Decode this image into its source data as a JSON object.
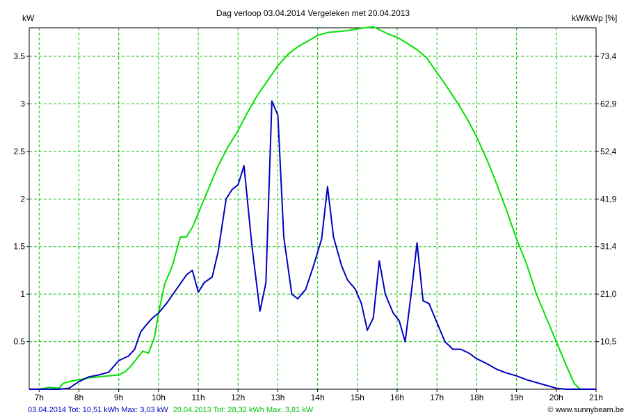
{
  "chart_data": {
    "type": "line",
    "title": "Dag  verloop 03.04.2014   Vergeleken met 20.04.2013",
    "ylabel_left": "kW",
    "ylabel_right": "kW/kWp [%]",
    "x_ticks": [
      "7h",
      "8h",
      "9h",
      "10h",
      "11h",
      "12h",
      "13h",
      "14h",
      "15h",
      "16h",
      "17h",
      "18h",
      "19h",
      "20h",
      "21h"
    ],
    "y_ticks_left": [
      "0.5",
      "1",
      "1.5",
      "2",
      "2.5",
      "3",
      "3.5"
    ],
    "y_ticks_right": [
      "10,5",
      "21,0",
      "31,4",
      "41,9",
      "52,4",
      "62,9",
      "73,4"
    ],
    "xlim": [
      6.75,
      21
    ],
    "ylim": [
      0,
      3.8
    ],
    "grid": true,
    "series": [
      {
        "color": "#00e000",
        "x": [
          6.75,
          7.0,
          7.25,
          7.5,
          7.6,
          7.75,
          8.0,
          8.25,
          8.5,
          8.75,
          9.0,
          9.15,
          9.3,
          9.45,
          9.6,
          9.75,
          9.9,
          10.0,
          10.15,
          10.35,
          10.55,
          10.7,
          10.85,
          11.0,
          11.25,
          11.5,
          11.75,
          12.0,
          12.25,
          12.5,
          12.75,
          13.0,
          13.25,
          13.5,
          13.75,
          14.0,
          14.25,
          14.5,
          14.75,
          15.0,
          15.2,
          15.4,
          15.6,
          15.8,
          16.0,
          16.2,
          16.5,
          16.75,
          17.0,
          17.25,
          17.5,
          17.75,
          18.0,
          18.25,
          18.5,
          18.75,
          19.0,
          19.25,
          19.5,
          19.75,
          20.0,
          20.25,
          20.45,
          20.6,
          20.8,
          21.0
        ],
        "y": [
          0.0,
          0.0,
          0.02,
          0.01,
          0.06,
          0.08,
          0.1,
          0.12,
          0.13,
          0.14,
          0.15,
          0.18,
          0.24,
          0.32,
          0.4,
          0.38,
          0.55,
          0.8,
          1.1,
          1.3,
          1.6,
          1.6,
          1.7,
          1.85,
          2.1,
          2.35,
          2.55,
          2.72,
          2.92,
          3.1,
          3.25,
          3.4,
          3.52,
          3.6,
          3.66,
          3.72,
          3.75,
          3.76,
          3.77,
          3.79,
          3.8,
          3.81,
          3.77,
          3.73,
          3.7,
          3.65,
          3.57,
          3.48,
          3.33,
          3.18,
          3.02,
          2.85,
          2.65,
          2.42,
          2.16,
          1.88,
          1.58,
          1.32,
          1.0,
          0.75,
          0.5,
          0.25,
          0.06,
          0.0,
          0.0,
          0.0
        ],
        "max_label": "20.04.2013 Tot: 28,32 kWh Max: 3,81 kW"
      },
      {
        "color": "#0000c0",
        "x": [
          6.75,
          7.5,
          7.75,
          8.0,
          8.25,
          8.5,
          8.75,
          9.0,
          9.25,
          9.4,
          9.55,
          9.7,
          9.85,
          10.0,
          10.2,
          10.45,
          10.7,
          10.85,
          11.0,
          11.15,
          11.35,
          11.5,
          11.7,
          11.85,
          12.0,
          12.15,
          12.35,
          12.55,
          12.7,
          12.85,
          13.0,
          13.15,
          13.35,
          13.5,
          13.7,
          13.9,
          14.1,
          14.25,
          14.4,
          14.6,
          14.75,
          14.95,
          15.1,
          15.25,
          15.4,
          15.55,
          15.7,
          15.9,
          16.05,
          16.2,
          16.35,
          16.5,
          16.65,
          16.8,
          17.0,
          17.2,
          17.4,
          17.6,
          17.8,
          18.0,
          18.25,
          18.5,
          18.75,
          19.0,
          19.25,
          19.5,
          19.75,
          20.0,
          20.25,
          21.0
        ],
        "y": [
          0.0,
          0.0,
          0.01,
          0.08,
          0.13,
          0.15,
          0.18,
          0.3,
          0.35,
          0.42,
          0.6,
          0.68,
          0.75,
          0.8,
          0.9,
          1.05,
          1.2,
          1.25,
          1.02,
          1.12,
          1.18,
          1.45,
          2.0,
          2.1,
          2.15,
          2.35,
          1.5,
          0.82,
          1.12,
          3.03,
          2.88,
          1.6,
          1.0,
          0.95,
          1.05,
          1.3,
          1.58,
          2.13,
          1.6,
          1.3,
          1.15,
          1.05,
          0.9,
          0.62,
          0.75,
          1.35,
          1.0,
          0.8,
          0.72,
          0.5,
          1.0,
          1.54,
          0.93,
          0.9,
          0.7,
          0.5,
          0.42,
          0.42,
          0.38,
          0.32,
          0.27,
          0.21,
          0.17,
          0.14,
          0.1,
          0.07,
          0.04,
          0.01,
          0.0,
          0.0
        ],
        "max_label": "03.04.2014 Tot: 10,51 kWh Max: 3,03 kW"
      }
    ]
  },
  "footer": {
    "copyright": "© www.sunnybeam.be"
  }
}
